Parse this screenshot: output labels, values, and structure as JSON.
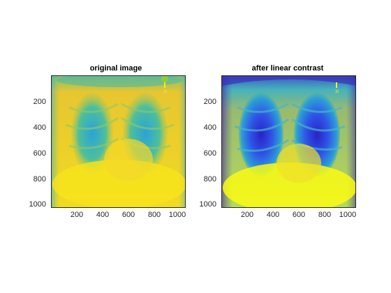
{
  "figure": {
    "panels": [
      {
        "id": "original",
        "title": "original image",
        "colormap": "parula",
        "x_ticks": [
          "200",
          "400",
          "600",
          "800",
          "1000"
        ],
        "y_ticks": [
          "200",
          "400",
          "600",
          "800",
          "1000"
        ]
      },
      {
        "id": "contrast",
        "title": "after linear contrast",
        "colormap": "parula",
        "x_ticks": [
          "200",
          "400",
          "600",
          "800",
          "1000"
        ],
        "y_ticks": [
          "200",
          "400",
          "600",
          "800",
          "1000"
        ]
      }
    ],
    "marker_text": "3I"
  }
}
